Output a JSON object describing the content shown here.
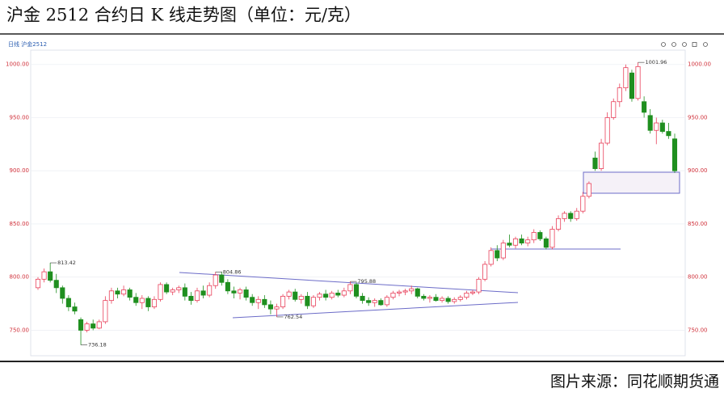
{
  "chart_data": {
    "type": "candlestick",
    "title": "沪金 2512 合约日 K 线走势图（单位：元/克）",
    "symbol_label": "日线 沪金2512",
    "source": "图片来源：同花顺期货通",
    "up_color": "#e8405a",
    "down_color": "#1f8f1f",
    "ylim": [
      726,
      1015
    ],
    "yticks": [
      {
        "value": 750,
        "label": "750.00"
      },
      {
        "value": 800,
        "label": "800.00"
      },
      {
        "value": 850,
        "label": "850.00"
      },
      {
        "value": 900,
        "label": "900.00"
      },
      {
        "value": 950,
        "label": "950.00"
      },
      {
        "value": 1000,
        "label": "1000.00"
      }
    ],
    "grid": true,
    "open": [
      790,
      798,
      805,
      797,
      790,
      780,
      772,
      760,
      750,
      756,
      752,
      758,
      778,
      787,
      784,
      788,
      781,
      776,
      780,
      772,
      779,
      793,
      786,
      788,
      790,
      782,
      778,
      787,
      783,
      792,
      802,
      795,
      787,
      785,
      788,
      781,
      776,
      779,
      774,
      770,
      772,
      782,
      786,
      779,
      782,
      773,
      781,
      784,
      781,
      785,
      783,
      787,
      793,
      782,
      778,
      776,
      778,
      774,
      781,
      785,
      786,
      787,
      789,
      782,
      780,
      781,
      778,
      780,
      777,
      779,
      781,
      785,
      786,
      798,
      812,
      825,
      818,
      832,
      830,
      836,
      832,
      835,
      842,
      836,
      828,
      845,
      855,
      860,
      855,
      862,
      876,
      912,
      902,
      926,
      950,
      965,
      978,
      992,
      968,
      965,
      952,
      938,
      945,
      937,
      930
    ],
    "high": [
      800,
      808,
      813.42,
      803,
      792,
      783,
      776,
      762,
      758,
      760,
      760,
      782,
      790,
      790,
      792,
      790,
      785,
      783,
      782,
      782,
      795,
      795,
      790,
      792,
      794,
      786,
      790,
      792,
      795,
      804.86,
      805,
      798,
      791,
      790,
      791,
      784,
      782,
      783,
      778,
      775,
      784,
      788,
      789,
      784,
      786,
      783,
      786,
      788,
      787,
      788,
      790,
      795.88,
      795,
      785,
      781,
      780,
      780,
      783,
      787,
      788,
      789,
      792,
      790,
      784,
      783,
      784,
      782,
      782,
      781,
      783,
      787,
      788,
      800,
      815,
      828,
      830,
      835,
      840,
      838,
      840,
      838,
      845,
      844,
      838,
      848,
      858,
      862,
      862,
      865,
      880,
      890,
      918,
      930,
      955,
      968,
      982,
      1000,
      995,
      1001.96,
      970,
      958,
      950,
      948,
      945,
      935
    ],
    "low": [
      788,
      795,
      795,
      785,
      775,
      768,
      765,
      736.18,
      748,
      750,
      751,
      756,
      775,
      780,
      782,
      778,
      773,
      770,
      768,
      770,
      777,
      784,
      783,
      785,
      778,
      774,
      776,
      780,
      781,
      789,
      792,
      784,
      780,
      779,
      778,
      773,
      770,
      771,
      765,
      762.54,
      770,
      779,
      777,
      775,
      770,
      771,
      778,
      778,
      779,
      781,
      781,
      784,
      780,
      775,
      773,
      772,
      773,
      772,
      779,
      782,
      783,
      784,
      780,
      778,
      776,
      777,
      776,
      775,
      775,
      777,
      779,
      783,
      784,
      796,
      810,
      815,
      816,
      828,
      827,
      830,
      829,
      832,
      834,
      826,
      826,
      843,
      852,
      852,
      853,
      860,
      874,
      900,
      900,
      924,
      948,
      960,
      975,
      965,
      966,
      950,
      935,
      925,
      935,
      930,
      898
    ],
    "close": [
      798,
      805,
      797,
      790,
      780,
      772,
      768,
      750,
      756,
      752,
      758,
      778,
      787,
      784,
      788,
      781,
      776,
      780,
      772,
      779,
      793,
      786,
      788,
      790,
      782,
      778,
      787,
      783,
      792,
      802,
      795,
      787,
      785,
      788,
      781,
      776,
      779,
      774,
      770,
      772,
      782,
      786,
      779,
      782,
      773,
      781,
      784,
      781,
      785,
      783,
      787,
      793,
      782,
      778,
      776,
      778,
      774,
      781,
      785,
      786,
      787,
      789,
      782,
      780,
      781,
      778,
      780,
      777,
      779,
      781,
      785,
      786,
      798,
      812,
      825,
      818,
      832,
      830,
      836,
      832,
      835,
      842,
      836,
      828,
      845,
      855,
      860,
      855,
      862,
      876,
      888,
      902,
      926,
      950,
      965,
      978,
      997,
      968,
      998,
      955,
      938,
      945,
      937,
      933,
      900
    ],
    "annotations": [
      813.42,
      736.18,
      804.86,
      762.54,
      795.88,
      1001.96
    ]
  }
}
